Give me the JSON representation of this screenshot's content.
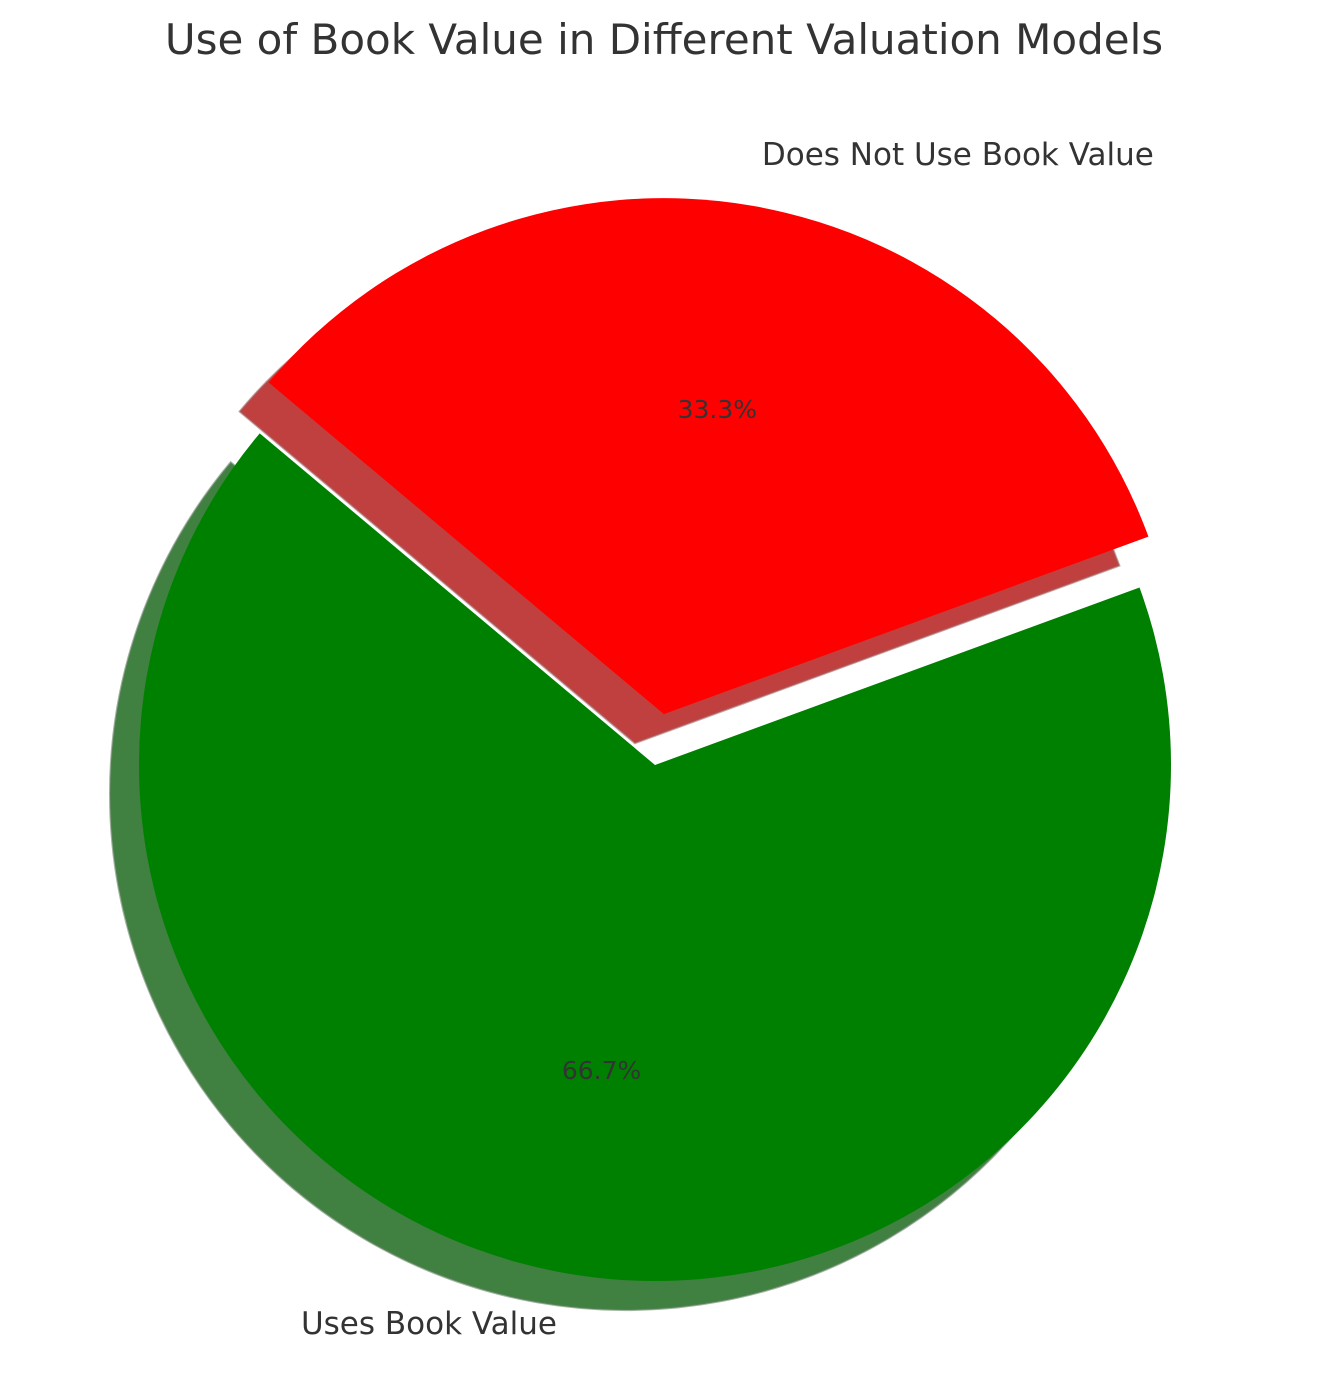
{
  "chart_data": {
    "type": "pie",
    "title": "Use of Book Value in Different Valuation Models",
    "slices": [
      {
        "label": "Uses Book Value",
        "value": 66.7,
        "pct_label": "66.7%",
        "color": "#008000",
        "explode": 0.0
      },
      {
        "label": "Does Not Use Book Value",
        "value": 33.3,
        "pct_label": "33.3%",
        "color": "#ff0000",
        "explode": 0.1
      }
    ],
    "start_angle_deg": 140,
    "shadow": true
  }
}
